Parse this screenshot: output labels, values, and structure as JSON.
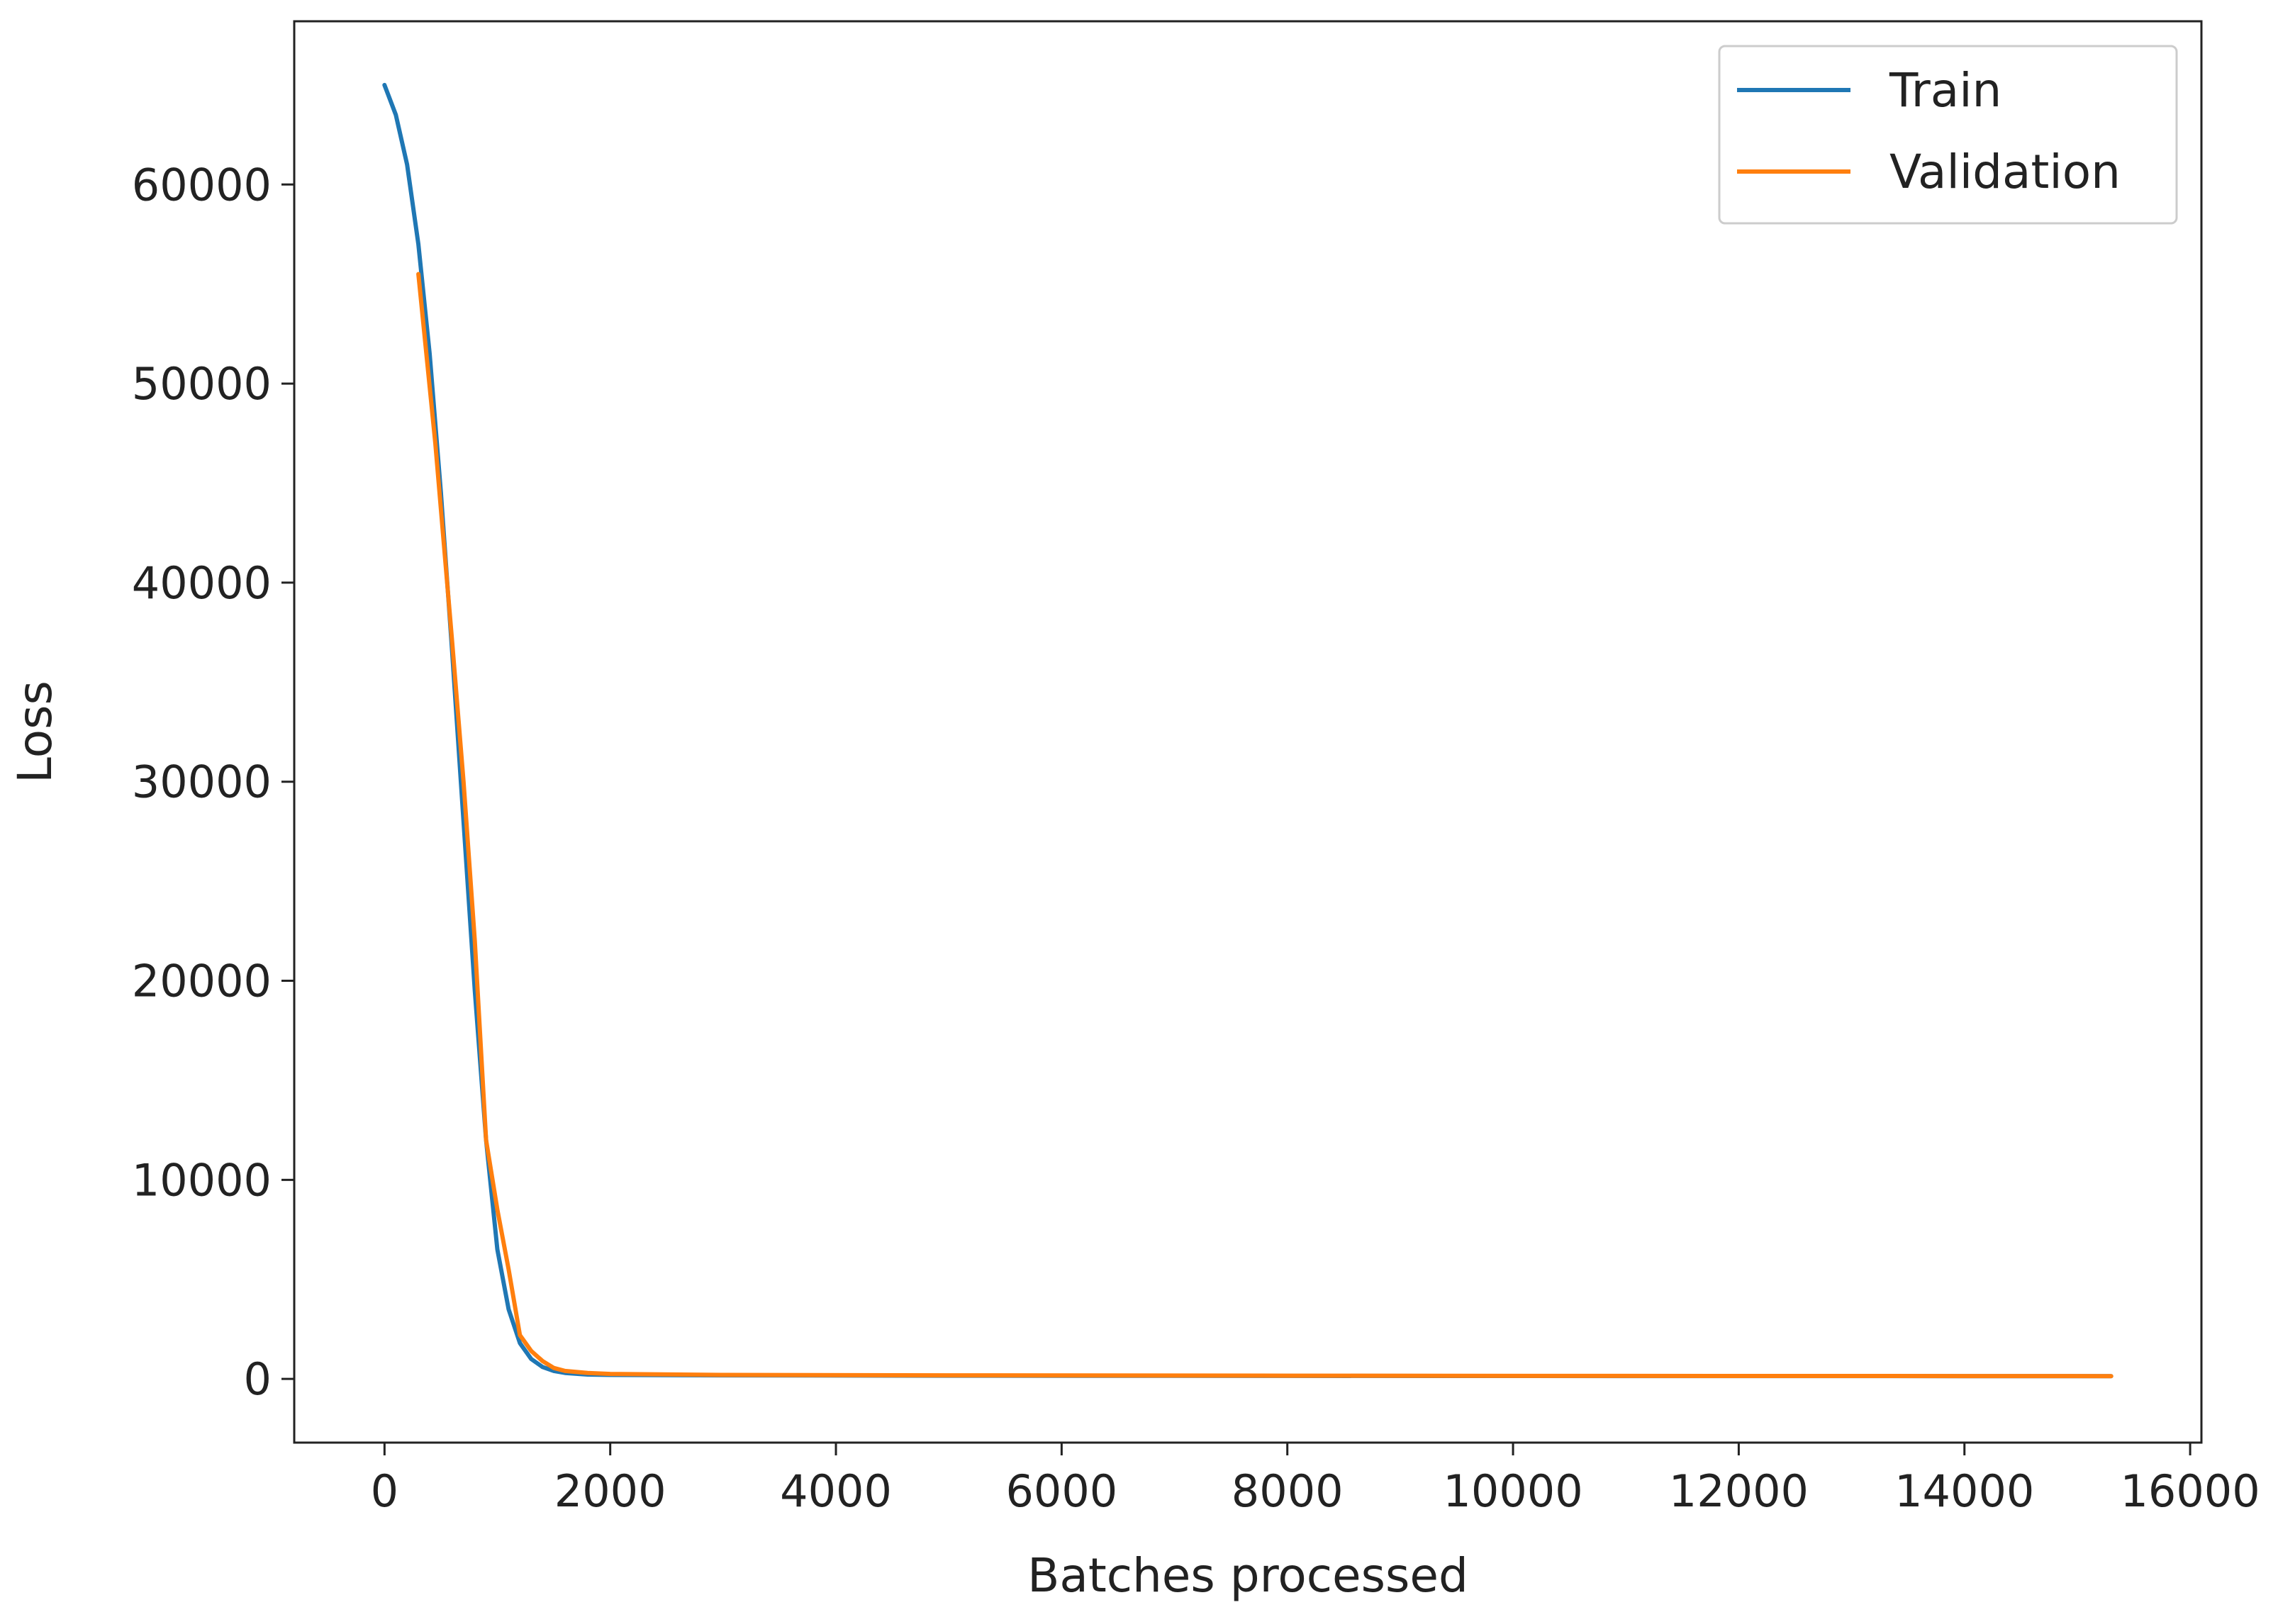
{
  "chart_data": {
    "type": "line",
    "title": "",
    "xlabel": "Batches processed",
    "ylabel": "Loss",
    "xlim": [
      -800,
      16100
    ],
    "ylim": [
      -3200,
      68200
    ],
    "xticks": [
      0,
      2000,
      4000,
      6000,
      8000,
      10000,
      12000,
      14000,
      16000
    ],
    "xtick_labels": [
      "0",
      "2000",
      "4000",
      "6000",
      "8000",
      "10000",
      "12000",
      "14000",
      "16000"
    ],
    "yticks": [
      0,
      10000,
      20000,
      30000,
      40000,
      50000,
      60000
    ],
    "ytick_labels": [
      "0",
      "10000",
      "20000",
      "30000",
      "40000",
      "50000",
      "60000"
    ],
    "grid": false,
    "legend_position": "top-right",
    "series": [
      {
        "name": "Train",
        "color": "#1f77b4",
        "x": [
          0,
          100,
          200,
          300,
          400,
          500,
          600,
          700,
          800,
          900,
          1000,
          1100,
          1200,
          1300,
          1400,
          1500,
          1600,
          1800,
          2000,
          3000,
          5000,
          8000,
          11000,
          14000,
          15300
        ],
        "y": [
          65000,
          63500,
          61000,
          57000,
          51500,
          44500,
          36500,
          28000,
          19500,
          12000,
          6500,
          3500,
          1800,
          1000,
          600,
          400,
          300,
          220,
          200,
          180,
          160,
          150,
          145,
          140,
          138
        ]
      },
      {
        "name": "Validation",
        "color": "#ff7f0e",
        "x": [
          300,
          450,
          600,
          700,
          800,
          900,
          1000,
          1100,
          1200,
          1300,
          1400,
          1500,
          1600,
          1800,
          2000,
          3000,
          5000,
          8000,
          11000,
          14000,
          15300
        ],
        "y": [
          55500,
          47000,
          37000,
          30000,
          22000,
          12000,
          8500,
          5500,
          2200,
          1400,
          900,
          550,
          400,
          300,
          250,
          200,
          180,
          160,
          150,
          145,
          140
        ]
      }
    ]
  }
}
